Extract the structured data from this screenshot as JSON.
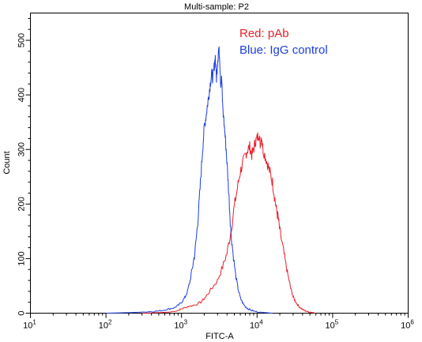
{
  "chart_data": {
    "type": "line",
    "title": "Multi-sample: P2",
    "xlabel": "FITC-A",
    "ylabel": "Count",
    "xscale": "log",
    "xlim": [
      10,
      1000000
    ],
    "ylim": [
      0,
      550
    ],
    "x_ticks": [
      {
        "base": "10",
        "exp": "1",
        "value": 10
      },
      {
        "base": "10",
        "exp": "2",
        "value": 100
      },
      {
        "base": "10",
        "exp": "3",
        "value": 1000
      },
      {
        "base": "10",
        "exp": "4",
        "value": 10000
      },
      {
        "base": "10",
        "exp": "5",
        "value": 100000
      },
      {
        "base": "10",
        "exp": "6",
        "value": 1000000
      }
    ],
    "y_ticks": [
      0,
      100,
      200,
      300,
      400,
      500
    ],
    "legend": [
      {
        "text": "Red: pAb",
        "color": "#e8202a"
      },
      {
        "text": "Blue: IgG control",
        "color": "#1c3fe0"
      }
    ],
    "legend_position": "top-right",
    "series": [
      {
        "color": "#e8202a",
        "x": [
          300,
          500,
          700,
          900,
          1000,
          1200,
          1500,
          1800,
          2100,
          2500,
          3000,
          3500,
          4000,
          4500,
          5000,
          5500,
          6000,
          6500,
          7000,
          7500,
          8000,
          8500,
          9000,
          9500,
          10000,
          10500,
          11000,
          11500,
          12000,
          13000,
          14000,
          15000,
          16000,
          17000,
          18000,
          19000,
          20000,
          22000,
          24000,
          26000,
          28000,
          30000,
          32000,
          35000,
          38000,
          42000,
          46000,
          50000,
          55000,
          60000
        ],
        "y": [
          0,
          1,
          2,
          5,
          8,
          12,
          15,
          20,
          30,
          45,
          60,
          85,
          110,
          150,
          195,
          230,
          260,
          275,
          290,
          300,
          305,
          290,
          300,
          315,
          320,
          330,
          310,
          325,
          300,
          285,
          270,
          255,
          240,
          215,
          190,
          175,
          150,
          120,
          90,
          65,
          45,
          30,
          22,
          14,
          9,
          5,
          3,
          2,
          1,
          0
        ]
      },
      {
        "color": "#1c3fe0",
        "x": [
          100,
          200,
          300,
          400,
          500,
          600,
          700,
          800,
          900,
          1000,
          1100,
          1200,
          1300,
          1400,
          1500,
          1600,
          1700,
          1800,
          1900,
          2000,
          2100,
          2200,
          2300,
          2400,
          2500,
          2600,
          2700,
          2800,
          2900,
          3000,
          3100,
          3200,
          3300,
          3400,
          3500,
          3700,
          3900,
          4100,
          4300,
          4500,
          4800,
          5200,
          5600,
          6000,
          6500,
          7000,
          7600,
          8500,
          9500,
          11000,
          13000,
          16000
        ],
        "y": [
          0,
          1,
          2,
          3,
          4,
          6,
          8,
          10,
          14,
          20,
          28,
          40,
          60,
          85,
          110,
          150,
          195,
          250,
          300,
          340,
          360,
          380,
          400,
          420,
          440,
          430,
          450,
          470,
          430,
          460,
          485,
          470,
          420,
          430,
          380,
          340,
          300,
          250,
          200,
          150,
          110,
          70,
          45,
          28,
          18,
          12,
          8,
          5,
          3,
          2,
          1,
          0
        ]
      }
    ]
  }
}
